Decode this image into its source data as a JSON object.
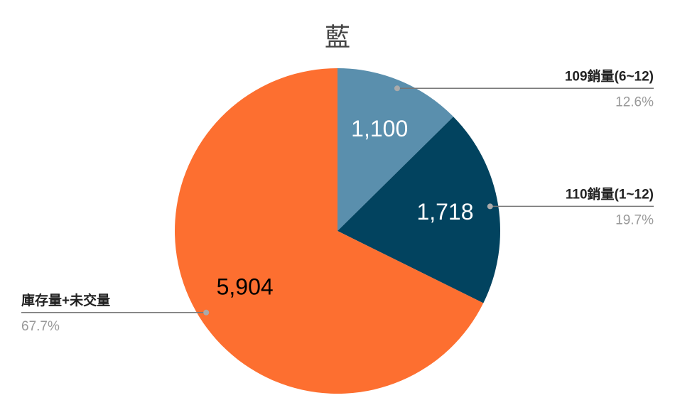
{
  "chart_data": {
    "type": "pie",
    "title": "藍",
    "categories": [
      "109銷量(6~12)",
      "110銷量(1~12)",
      "庫存量+未交量"
    ],
    "values": [
      1100,
      1718,
      5904
    ],
    "value_labels": [
      "1,100",
      "1,718",
      "5,904"
    ],
    "percents": [
      12.6,
      19.7,
      67.7
    ],
    "percent_labels": [
      "12.6%",
      "19.7%",
      "67.7%"
    ],
    "colors": [
      "#5a8fad",
      "#02435f",
      "#fd6f30"
    ],
    "value_label_colors": [
      "#ffffff",
      "#ffffff",
      "#000000"
    ]
  }
}
